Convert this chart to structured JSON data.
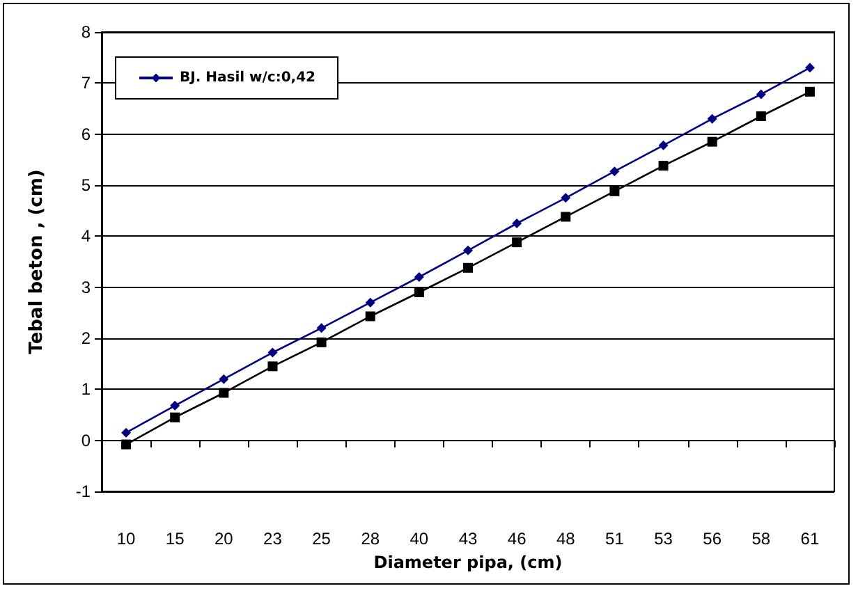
{
  "chart_data": {
    "type": "line",
    "xlabel": "Diameter pipa, (cm)",
    "ylabel": "Tebal beton , (cm)",
    "categories": [
      "10",
      "15",
      "20",
      "23",
      "25",
      "28",
      "40",
      "43",
      "46",
      "48",
      "51",
      "53",
      "56",
      "58",
      "61"
    ],
    "series": [
      {
        "name": "BJ. Hasil w/c:0,42",
        "color": "#000080",
        "marker": "diamond",
        "values": [
          0.15,
          0.68,
          1.2,
          1.72,
          2.2,
          2.7,
          3.2,
          3.72,
          4.25,
          4.75,
          5.27,
          5.78,
          6.3,
          6.78,
          7.3
        ]
      },
      {
        "color": "#000000",
        "marker": "square",
        "values": [
          -0.08,
          0.45,
          0.93,
          1.45,
          1.92,
          2.43,
          2.9,
          3.38,
          3.88,
          4.38,
          4.88,
          5.38,
          5.85,
          6.35,
          6.83
        ]
      }
    ],
    "ylim": [
      -1,
      8
    ],
    "yticks": [
      -1,
      0,
      1,
      2,
      3,
      4,
      5,
      6,
      7,
      8
    ],
    "grid": "y",
    "legend": "top left",
    "line_style": "solid"
  }
}
